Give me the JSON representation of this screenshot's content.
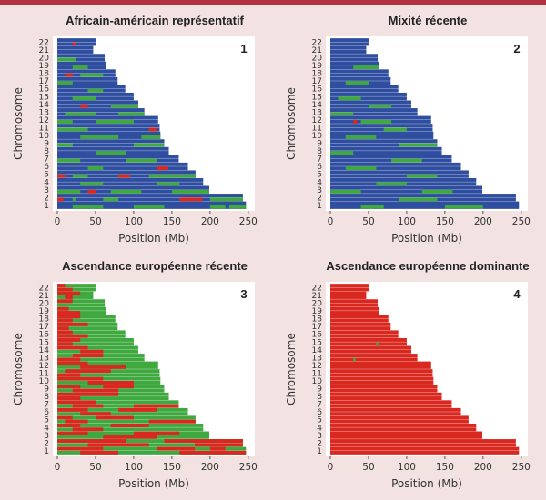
{
  "colors": {
    "african": "#2f4ea0",
    "european": "#3fa940",
    "native": "#d9281f",
    "frame": "#ffffff",
    "background": "#f2e2e1",
    "top_bar": "#b0323f"
  },
  "chart_data": [
    {
      "type": "chromosome-painting",
      "title": "Africain-américain représentatif",
      "badge": "1",
      "xlabel": "Position (Mb)",
      "ylabel": "Chromosome",
      "xticks": [
        "0",
        "50",
        "100",
        "150",
        "200",
        "250"
      ],
      "xlim": [
        0,
        255
      ],
      "chromosomes": [
        "1",
        "2",
        "3",
        "4",
        "5",
        "6",
        "7",
        "8",
        "9",
        "10",
        "11",
        "12",
        "13",
        "14",
        "15",
        "16",
        "17",
        "18",
        "19",
        "20",
        "21",
        "22"
      ],
      "lengths_mb": [
        247,
        243,
        199,
        191,
        181,
        171,
        159,
        146,
        140,
        135,
        134,
        132,
        114,
        106,
        100,
        89,
        79,
        76,
        64,
        62,
        47,
        50
      ],
      "base": "african",
      "segments": [
        [
          0,
          1,
          20,
          60,
          "european"
        ],
        [
          0,
          1,
          100,
          140,
          "european"
        ],
        [
          0,
          1,
          200,
          220,
          "european"
        ],
        [
          0,
          1,
          225,
          247,
          "european"
        ],
        [
          1,
          1,
          0,
          8,
          "native"
        ],
        [
          1,
          1,
          20,
          25,
          "european"
        ],
        [
          1,
          1,
          60,
          80,
          "european"
        ],
        [
          1,
          1,
          160,
          190,
          "native"
        ],
        [
          1,
          1,
          200,
          243,
          "european"
        ],
        [
          2,
          1,
          0,
          30,
          "european"
        ],
        [
          2,
          1,
          40,
          50,
          "native"
        ],
        [
          2,
          1,
          70,
          110,
          "european"
        ],
        [
          2,
          1,
          150,
          199,
          "european"
        ],
        [
          3,
          1,
          30,
          60,
          "european"
        ],
        [
          3,
          1,
          130,
          160,
          "european"
        ],
        [
          4,
          1,
          0,
          10,
          "native"
        ],
        [
          4,
          1,
          20,
          40,
          "european"
        ],
        [
          4,
          1,
          80,
          95,
          "native"
        ],
        [
          4,
          1,
          120,
          181,
          "european"
        ],
        [
          5,
          1,
          40,
          60,
          "european"
        ],
        [
          5,
          1,
          130,
          145,
          "native"
        ],
        [
          6,
          1,
          0,
          30,
          "european"
        ],
        [
          6,
          1,
          90,
          130,
          "european"
        ],
        [
          7,
          1,
          50,
          90,
          "european"
        ],
        [
          8,
          1,
          0,
          20,
          "european"
        ],
        [
          8,
          1,
          100,
          140,
          "european"
        ],
        [
          9,
          1,
          30,
          80,
          "european"
        ],
        [
          9,
          1,
          110,
          135,
          "european"
        ],
        [
          10,
          1,
          0,
          40,
          "european"
        ],
        [
          10,
          1,
          120,
          130,
          "native"
        ],
        [
          11,
          1,
          0,
          20,
          "european"
        ],
        [
          11,
          1,
          50,
          100,
          "european"
        ],
        [
          12,
          1,
          10,
          50,
          "european"
        ],
        [
          12,
          1,
          80,
          114,
          "european"
        ],
        [
          13,
          1,
          30,
          40,
          "native"
        ],
        [
          13,
          1,
          70,
          106,
          "european"
        ],
        [
          14,
          1,
          20,
          50,
          "european"
        ],
        [
          15,
          1,
          40,
          60,
          "european"
        ],
        [
          16,
          1,
          0,
          20,
          "european"
        ],
        [
          17,
          1,
          10,
          20,
          "native"
        ],
        [
          17,
          1,
          30,
          60,
          "european"
        ],
        [
          18,
          1,
          20,
          40,
          "european"
        ],
        [
          19,
          1,
          0,
          25,
          "european"
        ],
        [
          21,
          1,
          20,
          25,
          "native"
        ]
      ]
    },
    {
      "type": "chromosome-painting",
      "title": "Mixité récente",
      "badge": "2",
      "xlabel": "Position (Mb)",
      "ylabel": "Chromosome",
      "xticks": [
        "0",
        "50",
        "100",
        "150",
        "200",
        "250"
      ],
      "xlim": [
        0,
        255
      ],
      "chromosomes": [
        "1",
        "2",
        "3",
        "4",
        "5",
        "6",
        "7",
        "8",
        "9",
        "10",
        "11",
        "12",
        "13",
        "14",
        "15",
        "16",
        "17",
        "18",
        "19",
        "20",
        "21",
        "22"
      ],
      "lengths_mb": [
        247,
        243,
        199,
        191,
        181,
        171,
        159,
        146,
        140,
        135,
        134,
        132,
        114,
        106,
        100,
        89,
        79,
        76,
        64,
        62,
        47,
        50
      ],
      "base": "african",
      "segments": [
        [
          0,
          1,
          40,
          70,
          "european"
        ],
        [
          0,
          1,
          150,
          200,
          "european"
        ],
        [
          1,
          1,
          90,
          140,
          "european"
        ],
        [
          2,
          1,
          0,
          40,
          "european"
        ],
        [
          2,
          1,
          120,
          160,
          "european"
        ],
        [
          3,
          1,
          60,
          100,
          "european"
        ],
        [
          4,
          1,
          100,
          140,
          "european"
        ],
        [
          5,
          1,
          20,
          60,
          "european"
        ],
        [
          6,
          1,
          80,
          120,
          "european"
        ],
        [
          7,
          1,
          0,
          30,
          "european"
        ],
        [
          8,
          1,
          90,
          140,
          "european"
        ],
        [
          9,
          1,
          20,
          60,
          "european"
        ],
        [
          10,
          1,
          70,
          100,
          "european"
        ],
        [
          11,
          1,
          30,
          35,
          "native"
        ],
        [
          11,
          1,
          40,
          80,
          "european"
        ],
        [
          12,
          1,
          0,
          30,
          "european"
        ],
        [
          13,
          1,
          50,
          80,
          "european"
        ],
        [
          14,
          1,
          10,
          40,
          "european"
        ],
        [
          16,
          1,
          20,
          50,
          "european"
        ],
        [
          18,
          1,
          30,
          64,
          "european"
        ]
      ]
    },
    {
      "type": "chromosome-painting",
      "title": "Ascendance européenne récente",
      "badge": "3",
      "xlabel": "Position (Mb)",
      "ylabel": "Chromosome",
      "xticks": [
        "0",
        "50",
        "100",
        "150",
        "200",
        "250"
      ],
      "xlim": [
        0,
        255
      ],
      "chromosomes": [
        "1",
        "2",
        "3",
        "4",
        "5",
        "6",
        "7",
        "8",
        "9",
        "10",
        "11",
        "12",
        "13",
        "14",
        "15",
        "16",
        "17",
        "18",
        "19",
        "20",
        "21",
        "22"
      ],
      "lengths_mb": [
        247,
        243,
        199,
        191,
        181,
        171,
        159,
        146,
        140,
        135,
        134,
        132,
        114,
        106,
        100,
        89,
        79,
        76,
        64,
        62,
        47,
        50
      ],
      "base": "european",
      "segments": [
        [
          0,
          0,
          0,
          60,
          "native"
        ],
        [
          0,
          0,
          130,
          180,
          "native"
        ],
        [
          0,
          0,
          200,
          220,
          "native"
        ],
        [
          0,
          1,
          30,
          80,
          "native"
        ],
        [
          0,
          1,
          160,
          247,
          "native"
        ],
        [
          1,
          0,
          0,
          90,
          "native"
        ],
        [
          1,
          0,
          140,
          243,
          "native"
        ],
        [
          1,
          1,
          40,
          120,
          "native"
        ],
        [
          1,
          1,
          180,
          243,
          "native"
        ],
        [
          2,
          0,
          0,
          40,
          "native"
        ],
        [
          2,
          0,
          100,
          160,
          "native"
        ],
        [
          2,
          1,
          60,
          130,
          "native"
        ],
        [
          3,
          0,
          0,
          30,
          "native"
        ],
        [
          3,
          0,
          70,
          120,
          "native"
        ],
        [
          3,
          1,
          20,
          60,
          "native"
        ],
        [
          4,
          0,
          0,
          20,
          "native"
        ],
        [
          4,
          0,
          50,
          100,
          "native"
        ],
        [
          4,
          1,
          10,
          40,
          "native"
        ],
        [
          4,
          1,
          120,
          181,
          "native"
        ],
        [
          5,
          0,
          0,
          40,
          "native"
        ],
        [
          5,
          0,
          80,
          130,
          "native"
        ],
        [
          5,
          1,
          30,
          70,
          "native"
        ],
        [
          6,
          0,
          0,
          50,
          "native"
        ],
        [
          6,
          1,
          20,
          60,
          "native"
        ],
        [
          6,
          1,
          100,
          159,
          "native"
        ],
        [
          7,
          0,
          0,
          80,
          "native"
        ],
        [
          7,
          1,
          0,
          30,
          "native"
        ],
        [
          8,
          0,
          0,
          30,
          "native"
        ],
        [
          8,
          0,
          60,
          100,
          "native"
        ],
        [
          8,
          1,
          20,
          80,
          "native"
        ],
        [
          9,
          0,
          0,
          60,
          "native"
        ],
        [
          9,
          1,
          40,
          100,
          "native"
        ],
        [
          10,
          0,
          10,
          70,
          "native"
        ],
        [
          10,
          1,
          0,
          30,
          "native"
        ],
        [
          11,
          0,
          0,
          40,
          "native"
        ],
        [
          11,
          1,
          30,
          90,
          "native"
        ],
        [
          12,
          0,
          20,
          60,
          "native"
        ],
        [
          12,
          1,
          0,
          30,
          "native"
        ],
        [
          13,
          0,
          0,
          40,
          "native"
        ],
        [
          13,
          1,
          30,
          60,
          "native"
        ],
        [
          14,
          0,
          0,
          30,
          "native"
        ],
        [
          14,
          1,
          0,
          20,
          "native"
        ],
        [
          15,
          0,
          0,
          20,
          "native"
        ],
        [
          15,
          1,
          0,
          40,
          "native"
        ],
        [
          16,
          0,
          0,
          40,
          "native"
        ],
        [
          16,
          1,
          0,
          15,
          "native"
        ],
        [
          17,
          0,
          0,
          30,
          "native"
        ],
        [
          17,
          1,
          0,
          20,
          "native"
        ],
        [
          18,
          0,
          0,
          15,
          "native"
        ],
        [
          18,
          1,
          0,
          30,
          "native"
        ],
        [
          19,
          0,
          0,
          20,
          "native"
        ],
        [
          20,
          0,
          0,
          30,
          "native"
        ],
        [
          20,
          1,
          10,
          20,
          "native"
        ],
        [
          21,
          0,
          0,
          10,
          "native"
        ],
        [
          21,
          1,
          0,
          20,
          "native"
        ]
      ]
    },
    {
      "type": "chromosome-painting",
      "title": "Ascendance européenne dominante",
      "badge": "4",
      "xlabel": "Position (Mb)",
      "ylabel": "Chromosome",
      "xticks": [
        "0",
        "50",
        "100",
        "150",
        "200",
        "250"
      ],
      "xlim": [
        0,
        255
      ],
      "chromosomes": [
        "1",
        "2",
        "3",
        "4",
        "5",
        "6",
        "7",
        "8",
        "9",
        "10",
        "11",
        "12",
        "13",
        "14",
        "15",
        "16",
        "17",
        "18",
        "19",
        "20",
        "21",
        "22"
      ],
      "lengths_mb": [
        247,
        243,
        199,
        191,
        181,
        171,
        159,
        146,
        140,
        135,
        134,
        132,
        114,
        106,
        100,
        89,
        79,
        76,
        64,
        62,
        47,
        50
      ],
      "base": "native",
      "segments": [
        [
          12,
          1,
          30,
          33,
          "european"
        ],
        [
          14,
          1,
          60,
          63,
          "european"
        ]
      ]
    }
  ]
}
